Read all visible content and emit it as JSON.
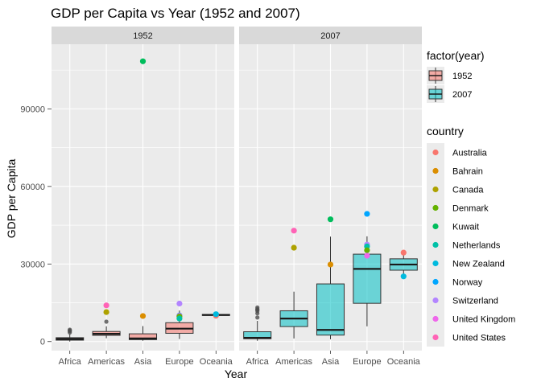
{
  "chart_data": {
    "type": "box",
    "title": "GDP per Capita vs Year (1952 and 2007)",
    "xlabel": "Year",
    "ylabel": "GDP per Capita",
    "ylim": [
      -3500,
      115000
    ],
    "yticks": [
      0,
      30000,
      60000,
      90000
    ],
    "categories": [
      "Africa",
      "Americas",
      "Asia",
      "Europe",
      "Oceania"
    ],
    "fill_legend": {
      "title": "factor(year)",
      "entries": [
        {
          "label": "1952",
          "color": "#F8766D"
        },
        {
          "label": "2007",
          "color": "#00BFC4"
        }
      ]
    },
    "color_legend": {
      "title": "country",
      "entries": [
        {
          "label": "Australia",
          "color": "#F8766D"
        },
        {
          "label": "Bahrain",
          "color": "#DB8E00"
        },
        {
          "label": "Canada",
          "color": "#AEA200"
        },
        {
          "label": "Denmark",
          "color": "#64B200"
        },
        {
          "label": "Kuwait",
          "color": "#00BD5C"
        },
        {
          "label": "Netherlands",
          "color": "#00C1A7"
        },
        {
          "label": "New Zealand",
          "color": "#00BADE"
        },
        {
          "label": "Norway",
          "color": "#00A6FF"
        },
        {
          "label": "Switzerland",
          "color": "#B385FF"
        },
        {
          "label": "United Kingdom",
          "color": "#EF67EB"
        },
        {
          "label": "United States",
          "color": "#FF63B6"
        }
      ]
    },
    "panels": [
      {
        "strip": "1952",
        "fill": "#F8766D",
        "boxes": [
          {
            "category": "Africa",
            "lower": 0,
            "q1": 550,
            "median": 1000,
            "q3": 1500,
            "upper": 2900,
            "outliers": [
              3500,
              4000,
              4300,
              4600
            ]
          },
          {
            "category": "Americas",
            "lower": 1300,
            "q1": 2400,
            "median": 3000,
            "q3": 3900,
            "upper": 5900,
            "outliers": [
              7700
            ]
          },
          {
            "category": "Asia",
            "lower": 300,
            "q1": 750,
            "median": 1200,
            "q3": 3000,
            "upper": 6000,
            "outliers": []
          },
          {
            "category": "Europe",
            "lower": 1000,
            "q1": 3200,
            "median": 5000,
            "q3": 7300,
            "upper": 12000,
            "outliers": []
          },
          {
            "category": "Oceania",
            "lower": 10000,
            "q1": 10100,
            "median": 10300,
            "q3": 10500,
            "upper": 10600,
            "outliers": []
          }
        ],
        "points": [
          {
            "category": "Americas",
            "country": "United States",
            "y": 14000
          },
          {
            "category": "Americas",
            "country": "Canada",
            "y": 11400
          },
          {
            "category": "Asia",
            "country": "Kuwait",
            "y": 108400
          },
          {
            "category": "Asia",
            "country": "Bahrain",
            "y": 9900
          },
          {
            "category": "Europe",
            "country": "Switzerland",
            "y": 14700
          },
          {
            "category": "Europe",
            "country": "Norway",
            "y": 10100
          },
          {
            "category": "Europe",
            "country": "United Kingdom",
            "y": 9950
          },
          {
            "category": "Europe",
            "country": "Denmark",
            "y": 9700
          },
          {
            "category": "Europe",
            "country": "Netherlands",
            "y": 8900
          },
          {
            "category": "Oceania",
            "country": "Australia",
            "y": 10000
          },
          {
            "category": "Oceania",
            "country": "New Zealand",
            "y": 10600
          }
        ]
      },
      {
        "strip": "2007",
        "fill": "#00BFC4",
        "boxes": [
          {
            "category": "Africa",
            "lower": 300,
            "q1": 1100,
            "median": 1450,
            "q3": 3800,
            "upper": 8000,
            "outliers": [
              9300,
              10900,
              11800,
              12300,
              12600,
              13200
            ]
          },
          {
            "category": "Americas",
            "lower": 1200,
            "q1": 5800,
            "median": 8900,
            "q3": 11900,
            "upper": 19300,
            "outliers": []
          },
          {
            "category": "Asia",
            "lower": 900,
            "q1": 2500,
            "median": 4500,
            "q3": 22300,
            "upper": 40600,
            "outliers": []
          },
          {
            "category": "Europe",
            "lower": 5900,
            "q1": 14800,
            "median": 28100,
            "q3": 33800,
            "upper": 40700,
            "outliers": []
          },
          {
            "category": "Oceania",
            "lower": 25200,
            "q1": 27600,
            "median": 29800,
            "q3": 32000,
            "upper": 34400,
            "outliers": []
          }
        ],
        "points": [
          {
            "category": "Americas",
            "country": "United States",
            "y": 42900
          },
          {
            "category": "Americas",
            "country": "Canada",
            "y": 36300
          },
          {
            "category": "Asia",
            "country": "Kuwait",
            "y": 47300
          },
          {
            "category": "Asia",
            "country": "Bahrain",
            "y": 29800
          },
          {
            "category": "Europe",
            "country": "Norway",
            "y": 49400
          },
          {
            "category": "Europe",
            "country": "Switzerland",
            "y": 37500
          },
          {
            "category": "Europe",
            "country": "Netherlands",
            "y": 36800
          },
          {
            "category": "Europe",
            "country": "Denmark",
            "y": 35300
          },
          {
            "category": "Europe",
            "country": "United Kingdom",
            "y": 33200
          },
          {
            "category": "Oceania",
            "country": "Australia",
            "y": 34400
          },
          {
            "category": "Oceania",
            "country": "New Zealand",
            "y": 25200
          }
        ]
      }
    ]
  }
}
